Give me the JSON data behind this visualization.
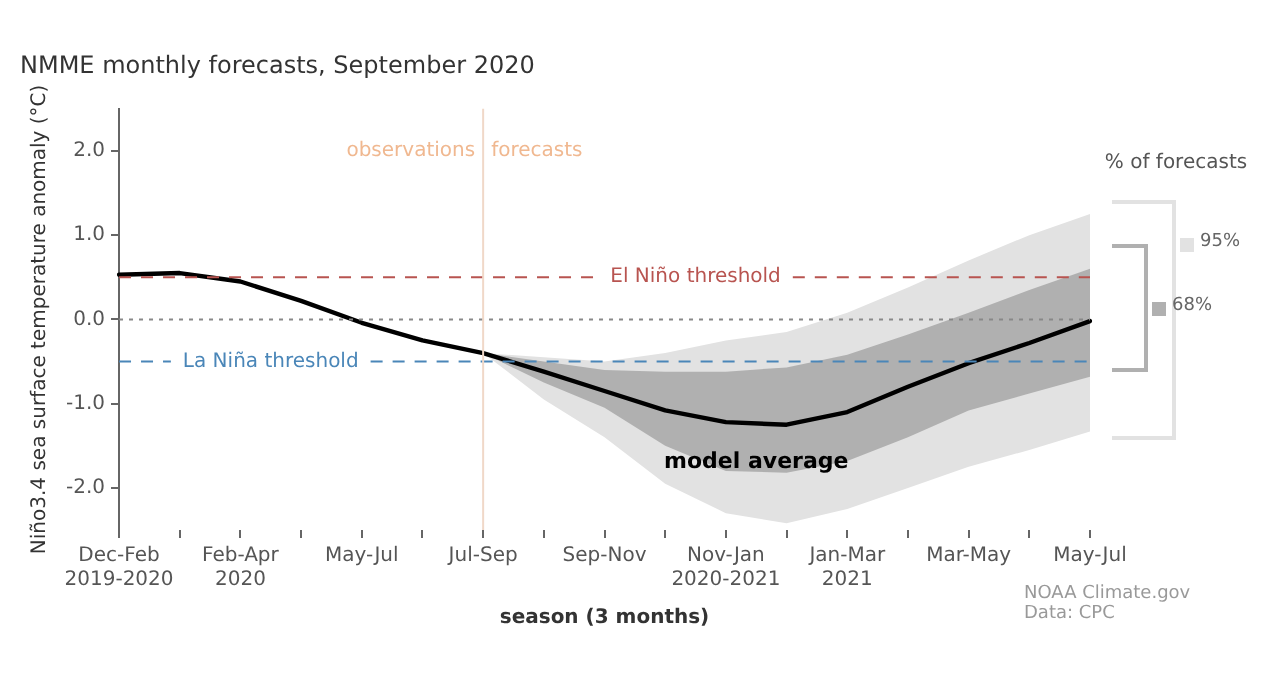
{
  "chart_data": {
    "type": "line",
    "title": "NMME monthly forecasts, September 2020",
    "xlabel": "season (3 months)",
    "ylabel": "Niño3.4 sea surface temperature anomaly (°C)",
    "legend_title": "% of forecasts",
    "legend": "right",
    "categories": [
      "Dec-Feb\n2019-2020",
      null,
      "Feb-Apr\n2020",
      null,
      "May-Jul",
      null,
      "Jul-Sep",
      null,
      "Sep-Nov",
      null,
      "Nov-Jan\n2020-2021",
      null,
      "Jan-Mar\n2021",
      null,
      "Mar-May",
      null,
      "May-Jul"
    ],
    "ylim": [
      -2.5,
      2.5
    ],
    "yticks": [
      {
        "value": -2,
        "label": "-2.0"
      },
      {
        "value": -1,
        "label": "-1.0"
      },
      {
        "value": 0,
        "label": "0.0"
      },
      {
        "value": 1,
        "label": "1.0"
      },
      {
        "value": 2,
        "label": "2.0"
      }
    ],
    "grid": false,
    "series": [
      {
        "name": "95%",
        "type": "line",
        "color": "#e2e2e2",
        "values": [
          null,
          null,
          null,
          null,
          null,
          null,
          null,
          null,
          null,
          null,
          null,
          null,
          null,
          null,
          null,
          null,
          null
        ],
        "lower": [
          null,
          null,
          null,
          null,
          null,
          null,
          -0.4,
          -0.95,
          -1.4,
          -1.95,
          -2.3,
          -2.42,
          -2.25,
          -2.0,
          -1.75,
          -1.55,
          -1.33
        ],
        "upper": [
          null,
          null,
          null,
          null,
          null,
          null,
          -0.4,
          -0.45,
          -0.5,
          -0.4,
          -0.25,
          -0.15,
          0.08,
          0.38,
          0.7,
          1.0,
          1.25
        ]
      },
      {
        "name": "68%",
        "type": "line",
        "color": "#b0b0b0",
        "values": [
          null,
          null,
          null,
          null,
          null,
          null,
          null,
          null,
          null,
          null,
          null,
          null,
          null,
          null,
          null,
          null,
          null
        ],
        "lower": [
          null,
          null,
          null,
          null,
          null,
          null,
          -0.4,
          -0.75,
          -1.05,
          -1.5,
          -1.8,
          -1.82,
          -1.68,
          -1.4,
          -1.08,
          -0.88,
          -0.68
        ],
        "upper": [
          null,
          null,
          null,
          null,
          null,
          null,
          -0.4,
          -0.5,
          -0.6,
          -0.62,
          -0.62,
          -0.57,
          -0.42,
          -0.18,
          0.08,
          0.35,
          0.6
        ]
      },
      {
        "name": "model average",
        "color": "#000000",
        "values": [
          0.53,
          0.55,
          0.45,
          0.22,
          -0.04,
          -0.25,
          -0.4,
          -0.62,
          -0.85,
          -1.08,
          -1.22,
          -1.25,
          -1.1,
          -0.8,
          -0.52,
          -0.28,
          -0.02
        ]
      }
    ],
    "ref_lines": [
      {
        "axis": "y",
        "value": 0.5,
        "label": "El Niño threshold",
        "color": "#b85450",
        "line_style": "dashed"
      },
      {
        "axis": "y",
        "value": -0.5,
        "label": "La Niña threshold",
        "color": "#4a86b8",
        "line_style": "dashed"
      },
      {
        "axis": "y",
        "value": 0,
        "label": null,
        "color": "#888888",
        "line_style": "dotted"
      },
      {
        "axis": "x",
        "value": "Jul-Sep",
        "label": "observations",
        "color": "#f0d8c8",
        "line_style": "solid"
      }
    ],
    "annotations": [
      {
        "text": "forecasts",
        "x": "Jul-Sep",
        "y": 2.0
      },
      "NOAA Climate.gov",
      "Data: CPC"
    ]
  }
}
